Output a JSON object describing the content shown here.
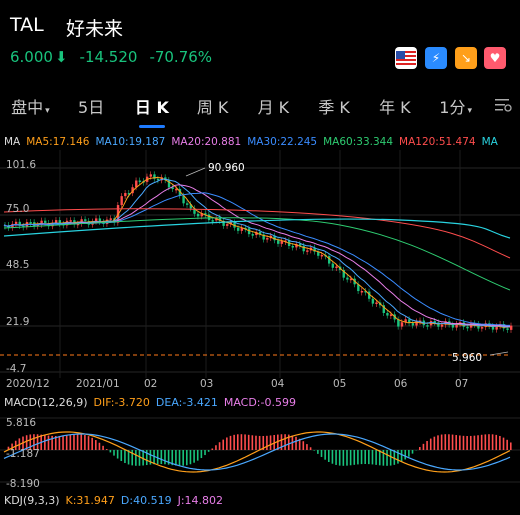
{
  "header": {
    "ticker": "TAL",
    "name": "好未来"
  },
  "quote": {
    "price": "6.000",
    "change": "-14.520",
    "change_pct": "-70.76%",
    "color": "#19c37d"
  },
  "header_icons": [
    "us-flag-icon",
    "lightning-icon",
    "trend-down-icon",
    "heart-icon"
  ],
  "tabs": [
    {
      "label": "盘中",
      "has_dropdown": true
    },
    {
      "label": "5日"
    },
    {
      "label": "日 K",
      "active": true
    },
    {
      "label": "周 K"
    },
    {
      "label": "月 K"
    },
    {
      "label": "季 K"
    },
    {
      "label": "年 K"
    },
    {
      "label": "1分",
      "has_dropdown": true
    }
  ],
  "ma_legend": [
    {
      "text": "MA",
      "color": "#dddddd"
    },
    {
      "text": "MA5:17.146",
      "color": "#ff9f1a"
    },
    {
      "text": "MA10:19.187",
      "color": "#4aa8ff"
    },
    {
      "text": "MA20:20.881",
      "color": "#e87ee8"
    },
    {
      "text": "MA30:22.245",
      "color": "#3a8cff"
    },
    {
      "text": "MA60:33.344",
      "color": "#2ecc71"
    },
    {
      "text": "MA120:51.474",
      "color": "#ff4d4d"
    },
    {
      "text": "MA",
      "color": "#29d3e0"
    }
  ],
  "main_chart": {
    "y_labels": [
      "101.6",
      "75.0",
      "48.5",
      "21.9",
      "-4.7"
    ],
    "x_labels": [
      "2020/12",
      "2021/01",
      "02",
      "03",
      "04",
      "05",
      "06",
      "07"
    ],
    "high_annotation": "90.960",
    "low_annotation": "5.960",
    "ylim": [
      -4.7,
      101.6
    ]
  },
  "macd": {
    "legend": [
      {
        "text": "MACD(12,26,9)",
        "color": "#dddddd"
      },
      {
        "text": "DIF:-3.720",
        "color": "#ff9f1a"
      },
      {
        "text": "DEA:-3.421",
        "color": "#4aa8ff"
      },
      {
        "text": "MACD:-0.599",
        "color": "#e87ee8"
      }
    ],
    "y_labels": [
      "5.816",
      "-1.187",
      "-8.190"
    ]
  },
  "kdj": {
    "legend": [
      {
        "text": "KDJ(9,3,3)",
        "color": "#dddddd"
      },
      {
        "text": "K:31.947",
        "color": "#ff9f1a"
      },
      {
        "text": "D:40.519",
        "color": "#4aa8ff"
      },
      {
        "text": "J:14.802",
        "color": "#e87ee8"
      }
    ]
  },
  "colors": {
    "up": "#ff4d4d",
    "down": "#19c37d",
    "accent": "#1e7bff"
  }
}
